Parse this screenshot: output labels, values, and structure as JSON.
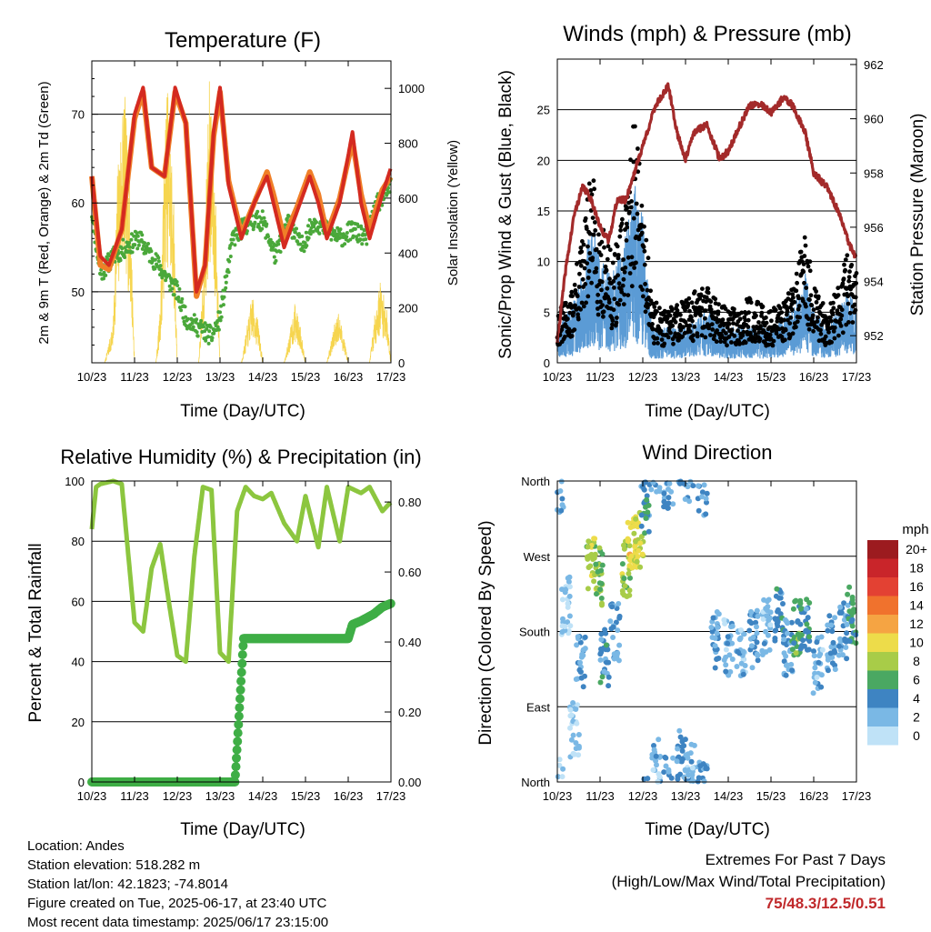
{
  "chart_data": [
    {
      "type": "line",
      "title": "Temperature (F)",
      "xlabel": "Time (Day/UTC)",
      "ylabel": "2m & 9m T (Red, Orange) & 2m Td (Green)",
      "ylabel_right": "Solar Insolation (Yellow)",
      "x_ticks": [
        "10/23",
        "11/23",
        "12/23",
        "13/23",
        "14/23",
        "15/23",
        "16/23",
        "17/23"
      ],
      "ylim": [
        42,
        76
      ],
      "y_ticks": [
        50,
        60,
        70
      ],
      "ylim_right": [
        0,
        1100
      ],
      "y_ticks_right": [
        0,
        200,
        400,
        600,
        800,
        1000
      ],
      "x_range_days": [
        10,
        17
      ],
      "series": [
        {
          "color": "#d42a20",
          "x": [
            10.0,
            10.2,
            10.4,
            10.7,
            11.0,
            11.2,
            11.4,
            11.7,
            11.95,
            12.2,
            12.45,
            12.65,
            12.85,
            13.0,
            13.2,
            13.5,
            13.8,
            14.1,
            14.25,
            14.5,
            14.8,
            15.1,
            15.3,
            15.5,
            15.8,
            16.1,
            16.3,
            16.5,
            16.8,
            17.0
          ],
          "y": [
            63,
            54,
            53,
            57,
            70,
            73,
            64,
            63,
            73,
            69,
            50,
            53,
            68,
            73,
            62,
            56,
            60,
            63,
            60,
            55,
            59,
            63,
            60,
            56,
            60,
            68,
            60,
            56,
            61,
            64
          ]
        },
        {
          "color": "#f07f28",
          "x": [
            10.0,
            10.2,
            10.4,
            10.7,
            11.0,
            11.2,
            11.4,
            11.7,
            11.95,
            12.2,
            12.45,
            12.65,
            12.85,
            13.0,
            13.2,
            13.5,
            13.8,
            14.1,
            14.25,
            14.5,
            14.8,
            15.1,
            15.3,
            15.5,
            15.8,
            16.1,
            16.3,
            16.5,
            16.8,
            17.0
          ],
          "y": [
            63,
            53,
            52.5,
            57,
            69.5,
            72.5,
            64,
            63,
            72.5,
            69,
            49.5,
            53,
            67.5,
            72.5,
            62.5,
            56.5,
            60,
            63.5,
            61,
            56,
            59.5,
            63.5,
            61,
            56.5,
            60.5,
            67,
            61,
            57,
            61.5,
            63
          ]
        },
        {
          "color": "#4aa83a",
          "x": [
            10.0,
            10.2,
            10.5,
            10.8,
            11.1,
            11.4,
            11.7,
            12.0,
            12.2,
            12.5,
            12.8,
            13.0,
            13.3,
            13.7,
            14.0,
            14.3,
            14.6,
            14.9,
            15.2,
            15.5,
            15.8,
            16.1,
            16.4,
            16.7,
            17.0
          ],
          "y": [
            59,
            52,
            54,
            55,
            56,
            54,
            52,
            50,
            47,
            46,
            45,
            47,
            56,
            58,
            58,
            54,
            58,
            55,
            58,
            57,
            56,
            57,
            56,
            60,
            62
          ]
        },
        {
          "color": "#f5d03c",
          "x": [
            10.0,
            10.3,
            10.5,
            10.6,
            10.75,
            10.9,
            11.0,
            11.5,
            11.6,
            11.75,
            11.9,
            12.0,
            12.5,
            12.6,
            12.75,
            12.9,
            13.0,
            13.5,
            13.6,
            13.75,
            13.9,
            14.0,
            14.5,
            14.6,
            14.75,
            14.9,
            15.0,
            15.5,
            15.6,
            15.75,
            15.9,
            16.0,
            16.5,
            16.6,
            16.75,
            16.9,
            17.0
          ],
          "y": [
            0,
            0,
            150,
            700,
            1050,
            600,
            0,
            0,
            200,
            1050,
            700,
            0,
            0,
            300,
            1050,
            600,
            0,
            0,
            100,
            250,
            150,
            0,
            0,
            80,
            220,
            120,
            0,
            0,
            80,
            200,
            100,
            0,
            0,
            150,
            300,
            200,
            0
          ]
        }
      ]
    },
    {
      "type": "line",
      "title": "Winds (mph) & Pressure (mb)",
      "xlabel": "Time (Day/UTC)",
      "ylabel": "Sonic/Prop Wind & Gust (Blue, Black)",
      "ylabel_right": "Station Pressure (Maroon)",
      "x_ticks": [
        "10/23",
        "11/23",
        "12/23",
        "13/23",
        "14/23",
        "15/23",
        "16/23",
        "17/23"
      ],
      "ylim": [
        0,
        30
      ],
      "y_ticks": [
        0,
        5,
        10,
        15,
        20,
        25
      ],
      "ylim_right": [
        951.0,
        962.2
      ],
      "y_ticks_right": [
        952,
        954,
        956,
        958,
        960,
        962
      ],
      "x_range_days": [
        10,
        17
      ],
      "series": [
        {
          "color": "#5b9bd5",
          "x": [
            10.0,
            10.3,
            10.6,
            10.8,
            11.0,
            11.3,
            11.6,
            11.8,
            12.0,
            12.2,
            12.5,
            13.0,
            13.5,
            14.0,
            14.5,
            15.0,
            15.5,
            15.8,
            16.0,
            16.3,
            16.6,
            16.8,
            17.0
          ],
          "y": [
            2,
            3,
            5,
            8,
            6,
            5,
            7,
            10,
            8,
            2,
            2,
            2,
            3,
            2,
            2,
            2,
            3,
            5,
            3,
            2,
            3,
            4,
            3
          ]
        },
        {
          "color": "#000000",
          "x": [
            10.0,
            10.3,
            10.6,
            10.8,
            11.0,
            11.3,
            11.6,
            11.8,
            12.0,
            12.2,
            12.5,
            13.0,
            13.5,
            14.0,
            14.5,
            15.0,
            15.5,
            15.8,
            16.0,
            16.3,
            16.6,
            16.8,
            17.0
          ],
          "y": [
            4,
            5,
            10,
            15,
            11,
            8,
            12,
            20,
            14,
            5,
            4,
            5,
            6,
            4,
            5,
            4,
            6,
            10,
            6,
            4,
            6,
            9,
            7
          ]
        },
        {
          "color": "#a32a2a",
          "x": [
            10.0,
            10.2,
            10.4,
            10.6,
            10.8,
            11.0,
            11.2,
            11.4,
            11.6,
            11.8,
            12.0,
            12.3,
            12.6,
            12.8,
            13.0,
            13.2,
            13.5,
            13.8,
            14.0,
            14.2,
            14.5,
            14.8,
            15.0,
            15.3,
            15.5,
            15.8,
            16.0,
            16.3,
            16.6,
            16.8,
            17.0
          ],
          "y": [
            951.8,
            954.5,
            956.5,
            957.5,
            957.0,
            956.0,
            955.5,
            957.0,
            957.0,
            958.0,
            959.0,
            960.5,
            961.2,
            959.5,
            958.5,
            959.5,
            959.8,
            958.5,
            958.8,
            959.5,
            960.5,
            960.5,
            960.2,
            960.8,
            960.5,
            959.5,
            958.0,
            957.5,
            956.5,
            955.5,
            954.8
          ]
        }
      ]
    },
    {
      "type": "line",
      "title": "Relative Humidity (%) & Precipitation (in)",
      "xlabel": "Time (Day/UTC)",
      "ylabel": "Percent & Total Rainfall",
      "x_ticks": [
        "10/23",
        "11/23",
        "12/23",
        "13/23",
        "14/23",
        "15/23",
        "16/23",
        "17/23"
      ],
      "ylim": [
        0,
        100
      ],
      "y_ticks": [
        0,
        20,
        40,
        60,
        80,
        100
      ],
      "ylim_right": [
        0,
        0.86
      ],
      "y_ticks_right": [
        "0.00",
        "0.20",
        "0.40",
        "0.60",
        "0.80"
      ],
      "x_range_days": [
        10,
        17
      ],
      "series": [
        {
          "color": "#8cc63f",
          "x": [
            10.0,
            10.1,
            10.2,
            10.5,
            10.7,
            11.0,
            11.2,
            11.4,
            11.6,
            11.8,
            12.0,
            12.2,
            12.4,
            12.6,
            12.8,
            13.0,
            13.2,
            13.4,
            13.6,
            13.8,
            14.0,
            14.2,
            14.5,
            14.8,
            15.0,
            15.3,
            15.5,
            15.8,
            16.0,
            16.3,
            16.5,
            16.8,
            17.0
          ],
          "y": [
            84,
            98,
            99,
            100,
            99,
            53,
            50,
            71,
            79,
            60,
            42,
            40,
            75,
            98,
            97,
            43,
            40,
            90,
            98,
            95,
            94,
            96,
            86,
            80,
            95,
            78,
            98,
            80,
            98,
            96,
            98,
            90,
            93
          ]
        },
        {
          "color": "#3fae46",
          "x": [
            10.0,
            13.35,
            13.45,
            13.55,
            14.0,
            15.0,
            16.0,
            16.1,
            16.3,
            16.6,
            16.8,
            17.0
          ],
          "y": [
            0,
            0,
            0.2,
            0.41,
            0.41,
            0.41,
            0.41,
            0.45,
            0.46,
            0.48,
            0.5,
            0.51
          ]
        }
      ]
    },
    {
      "type": "scatter",
      "title": "Wind Direction",
      "xlabel": "Time (Day/UTC)",
      "ylabel": "Direction (Colored By Speed)",
      "x_ticks": [
        "10/23",
        "11/23",
        "12/23",
        "13/23",
        "14/23",
        "15/23",
        "16/23",
        "17/23"
      ],
      "y_ticks": [
        "North",
        "East",
        "South",
        "West",
        "North"
      ],
      "ylim": [
        0,
        360
      ],
      "x_range_days": [
        10,
        17
      ],
      "legend": {
        "title": "mph",
        "labels": [
          "20+",
          "18",
          "16",
          "14",
          "12",
          "10",
          "8",
          "6",
          "4",
          "2",
          "0"
        ],
        "colors": [
          "#9c1b1f",
          "#c9252a",
          "#e34133",
          "#f0722d",
          "#f5a443",
          "#eddc4a",
          "#a8cc48",
          "#4aa862",
          "#3e84c2",
          "#7ab8e5",
          "#bfe2f7"
        ]
      },
      "x": [
        10.05,
        10.2,
        10.4,
        10.55,
        10.8,
        10.95,
        11.1,
        11.35,
        11.6,
        11.75,
        11.9,
        12.05,
        12.3,
        12.6,
        12.9,
        13.1,
        13.4,
        13.7,
        14.0,
        14.3,
        14.6,
        14.9,
        15.2,
        15.4,
        15.6,
        15.8,
        16.1,
        16.4,
        16.7,
        16.9
      ],
      "y": [
        355,
        210,
        60,
        140,
        260,
        245,
        150,
        180,
        255,
        280,
        290,
        330,
        20,
        355,
        30,
        10,
        350,
        170,
        160,
        150,
        170,
        185,
        200,
        160,
        185,
        190,
        140,
        165,
        180,
        200
      ],
      "speed": [
        2,
        1,
        1,
        3,
        8,
        7,
        4,
        3,
        8,
        10,
        9,
        4,
        2,
        3,
        3,
        2,
        3,
        3,
        2,
        2,
        3,
        2,
        4,
        3,
        6,
        4,
        2,
        3,
        3,
        5
      ]
    }
  ],
  "info": {
    "location": "Location: Andes",
    "elevation": "Station elevation: 518.282 m",
    "latlon": "Station lat/lon: 42.1823; -74.8014",
    "created": "Figure created on Tue, 2025-06-17, at 23:40 UTC",
    "recent": "Most recent data timestamp: 2025/06/17 23:15:00"
  },
  "extremes": {
    "title": "Extremes For Past 7 Days",
    "subtitle": "(High/Low/Max Wind/Total Precipitation)",
    "values": "75/48.3/12.5/0.51"
  }
}
